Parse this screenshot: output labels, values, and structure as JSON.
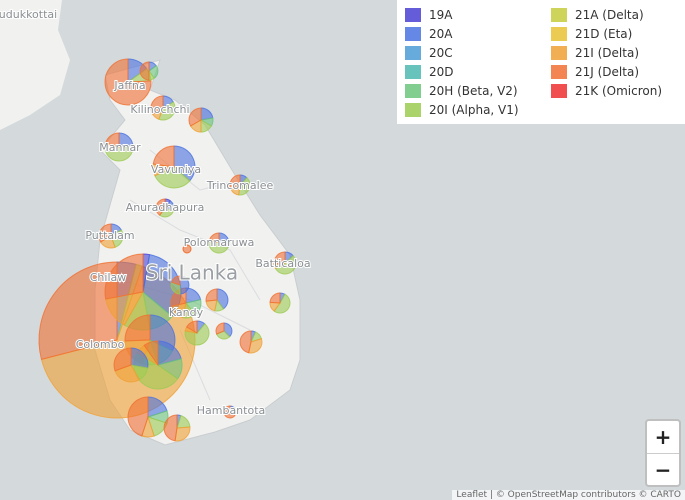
{
  "legend": [
    {
      "name": "19A",
      "color": "#4a3fd4"
    },
    {
      "name": "20A",
      "color": "#4a72e0"
    },
    {
      "name": "20C",
      "color": "#4c9bd6"
    },
    {
      "name": "20D",
      "color": "#4fb8b2"
    },
    {
      "name": "20H (Beta, V2)",
      "color": "#6cc47c"
    },
    {
      "name": "20I (Alpha, V1)",
      "color": "#9ccb52"
    },
    {
      "name": "21A (Delta)",
      "color": "#c6cb3c"
    },
    {
      "name": "21D (Eta)",
      "color": "#e8c234"
    },
    {
      "name": "21I (Delta)",
      "color": "#f0a034"
    },
    {
      "name": "21J (Delta)",
      "color": "#f07032"
    },
    {
      "name": "21K (Omicron)",
      "color": "#ee3030"
    }
  ],
  "places": [
    "udukkottai",
    "Jaffna",
    "Kilinochchi",
    "Mannar",
    "Vavuniya",
    "Trincomalee",
    "Anuradhapura",
    "Puttalam",
    "Polonnaruwa",
    "Batticaloa",
    "Sri Lanka",
    "Chilaw",
    "Kandy",
    "Colombo",
    "Hambantota"
  ],
  "markers": [
    {
      "values": [
        0,
        60,
        0,
        0,
        0,
        20,
        0,
        0,
        1000,
        441,
        0
      ]
    },
    {
      "values": [
        0,
        20,
        0,
        0,
        0,
        12,
        0,
        0,
        0,
        100,
        0
      ]
    },
    {
      "values": [
        0,
        3,
        0,
        0,
        5,
        2,
        0,
        0,
        0,
        10,
        0
      ]
    },
    {
      "values": [
        0,
        6,
        0,
        0,
        0,
        14,
        0,
        0,
        4,
        12,
        0
      ]
    },
    {
      "values": [
        0,
        8,
        0,
        0,
        4,
        6,
        0,
        0,
        6,
        12,
        0
      ]
    },
    {
      "values": [
        0,
        12,
        0,
        0,
        0,
        25,
        0,
        0,
        2,
        10,
        0
      ]
    },
    {
      "values": [
        0,
        40,
        0,
        0,
        0,
        35,
        0,
        0,
        10,
        25,
        0
      ]
    },
    {
      "values": [
        0,
        3,
        0,
        0,
        0,
        10,
        0,
        0,
        4,
        8,
        0
      ]
    },
    {
      "values": [
        2,
        4,
        0,
        0,
        0,
        6,
        0,
        0,
        0,
        8,
        0
      ]
    },
    {
      "values": [
        0,
        6,
        0,
        0,
        0,
        10,
        0,
        0,
        8,
        12,
        0
      ]
    },
    {
      "values": [
        0,
        8,
        0,
        0,
        0,
        12,
        0,
        0,
        0,
        5,
        0
      ]
    },
    {
      "values": [
        0,
        0,
        0,
        0,
        0,
        0,
        0,
        0,
        0,
        4,
        0
      ]
    },
    {
      "values": [
        0,
        4,
        0,
        0,
        0,
        16,
        0,
        0,
        2,
        8,
        0
      ]
    },
    {
      "values": [
        10,
        120,
        0,
        0,
        40,
        40,
        0,
        0,
        50,
        101,
        0
      ]
    },
    {
      "values": [
        0,
        12,
        0,
        0,
        10,
        8,
        0,
        0,
        10,
        16,
        0
      ]
    },
    {
      "values": [
        0,
        12,
        0,
        0,
        0,
        4,
        0,
        0,
        6,
        8,
        0
      ]
    },
    {
      "values": [
        0,
        2,
        0,
        0,
        0,
        13,
        0,
        0,
        4,
        6,
        0
      ]
    },
    {
      "values": [
        0,
        50,
        0,
        0,
        20,
        16,
        0,
        0,
        30,
        40,
        0
      ]
    },
    {
      "values": [
        0,
        4,
        0,
        0,
        0,
        24,
        0,
        0,
        2,
        6,
        0
      ]
    },
    {
      "values": [
        0,
        6,
        0,
        0,
        0,
        5,
        0,
        0,
        0,
        5,
        0
      ]
    },
    {
      "values": [
        0,
        2,
        0,
        0,
        0,
        4,
        0,
        0,
        10,
        14,
        0
      ]
    },
    {
      "values": [
        0,
        30,
        0,
        0,
        20,
        70,
        0,
        0,
        10,
        14,
        0
      ]
    },
    {
      "values": [
        0,
        20,
        0,
        0,
        0,
        10,
        0,
        0,
        20,
        22,
        0
      ]
    },
    {
      "values": [
        0,
        20,
        0,
        0,
        10,
        15,
        0,
        0,
        10,
        45,
        0
      ]
    },
    {
      "values": [
        0,
        2,
        0,
        0,
        0,
        8,
        0,
        0,
        12,
        20,
        0
      ]
    },
    {
      "values": [
        0,
        2,
        0,
        0,
        0,
        0,
        0,
        0,
        0,
        7,
        0
      ]
    },
    {
      "values": [
        0,
        10,
        0,
        0,
        0,
        6,
        0,
        0,
        0,
        4,
        0
      ]
    }
  ],
  "zoom": {
    "in": "+",
    "out": "−"
  },
  "attribution": "Leaflet | © OpenStreetMap contributors © CARTO"
}
